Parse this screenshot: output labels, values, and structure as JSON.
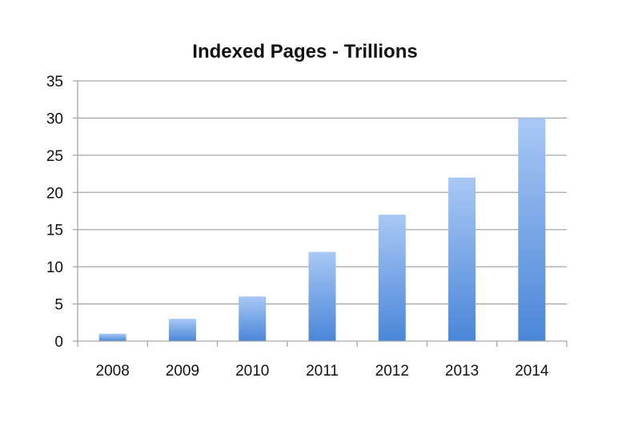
{
  "chart_data": {
    "type": "bar",
    "title": "Indexed Pages - Trillions",
    "xlabel": "",
    "ylabel": "",
    "categories": [
      "2008",
      "2009",
      "2010",
      "2011",
      "2012",
      "2013",
      "2014"
    ],
    "values": [
      1,
      3,
      6,
      12,
      17,
      22,
      30
    ],
    "ylim": [
      0,
      35
    ],
    "yticks": [
      0,
      5,
      10,
      15,
      20,
      25,
      30,
      35
    ],
    "grid": true,
    "legend": "none",
    "colors": {
      "bar_top": "#a9c8f5",
      "bar_bottom": "#4a86d8",
      "gridline": "#a6a6a6"
    }
  }
}
